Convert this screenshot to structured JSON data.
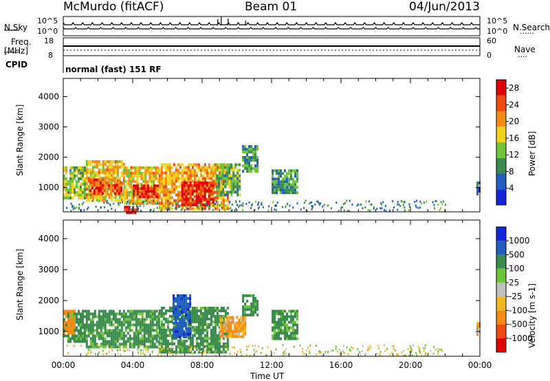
{
  "header": {
    "station": "McMurdo (fitACF)",
    "beam": "Beam 01",
    "date": "04/Jun/2013"
  },
  "top_panels": {
    "nsky_label": "N.Sky",
    "nsky_ticks": [
      "10^5",
      "10^0"
    ],
    "nsearch_label": "N.Search",
    "freq_label_1": "Freq.",
    "freq_label_2": "[MHz]",
    "freq_ticks": [
      "18",
      "8"
    ],
    "nave_label": "Nave",
    "nave_ticks": [
      "60",
      "0"
    ],
    "cpid_label": "CPID",
    "cpid_text": "normal (fast) 151 RF",
    "legend_dots": "......",
    "legend_dots_2": "...."
  },
  "colors": {
    "power_scale": [
      "#1426d9",
      "#1f5fbf",
      "#3a8c4e",
      "#6fc43a",
      "#f2d21e",
      "#f28c14",
      "#f04a10",
      "#e00000"
    ],
    "velocity_scale": [
      "#e00000",
      "#f04a10",
      "#f28c14",
      "#f2b81e",
      "#c0c0c0",
      "#6fc43a",
      "#3a8c4e",
      "#1f5fbf",
      "#1426d9"
    ]
  },
  "chart_data": [
    {
      "type": "heatmap",
      "title": "",
      "xlabel": "Time UT",
      "ylabel": "Slant Range [km]",
      "xlim": [
        "00:00",
        "24:00"
      ],
      "ylim": [
        200,
        4600
      ],
      "x_ticks": [
        "00:00",
        "04:00",
        "08:00",
        "12:00",
        "16:00",
        "20:00",
        "00:00"
      ],
      "y_ticks": [
        1000,
        2000,
        3000,
        4000
      ],
      "colorbar_label": "Power [dB]",
      "colorbar_ticks": [
        4,
        8,
        12,
        16,
        20,
        24,
        28
      ],
      "colorbar_range": [
        0,
        30
      ],
      "regions": [
        {
          "t0": 0.0,
          "t1": 1.3,
          "r0": 700,
          "r1": 1700,
          "value": 14
        },
        {
          "t0": 1.3,
          "t1": 3.5,
          "r0": 600,
          "r1": 1900,
          "value": 18
        },
        {
          "t0": 1.5,
          "t1": 3.3,
          "r0": 800,
          "r1": 1300,
          "value": 24
        },
        {
          "t0": 3.5,
          "t1": 5.5,
          "r0": 500,
          "r1": 1700,
          "value": 18
        },
        {
          "t0": 4.0,
          "t1": 5.5,
          "r0": 700,
          "r1": 1100,
          "value": 26
        },
        {
          "t0": 5.5,
          "t1": 9.5,
          "r0": 300,
          "r1": 1800,
          "value": 20
        },
        {
          "t0": 6.8,
          "t1": 8.6,
          "r0": 400,
          "r1": 1200,
          "value": 28
        },
        {
          "t0": 8.8,
          "t1": 10.2,
          "r0": 800,
          "r1": 1800,
          "value": 12
        },
        {
          "t0": 10.3,
          "t1": 11.2,
          "r0": 1500,
          "r1": 2400,
          "value": 10
        },
        {
          "t0": 12.0,
          "t1": 13.5,
          "r0": 800,
          "r1": 1600,
          "value": 10
        },
        {
          "t0": 3.5,
          "t1": 4.3,
          "r0": 200,
          "r1": 400,
          "value": 26
        },
        {
          "t0": 23.8,
          "t1": 24.0,
          "r0": 800,
          "r1": 1200,
          "value": 6
        }
      ]
    },
    {
      "type": "heatmap",
      "title": "",
      "xlabel": "Time UT",
      "ylabel": "Slant Range [km]",
      "xlim": [
        "00:00",
        "24:00"
      ],
      "ylim": [
        200,
        4600
      ],
      "x_ticks": [
        "00:00",
        "04:00",
        "08:00",
        "12:00",
        "16:00",
        "20:00",
        "00:00"
      ],
      "y_ticks": [
        1000,
        2000,
        3000,
        4000
      ],
      "colorbar_label": "Velocity [m s-1]",
      "colorbar_ticks": [
        "1000",
        "500",
        "100",
        "25",
        "-25",
        "-100",
        "-500",
        "-1000"
      ],
      "regions": [
        {
          "t0": 0.0,
          "t1": 1.3,
          "r0": 700,
          "r1": 1700,
          "value": 200
        },
        {
          "t0": 1.3,
          "t1": 5.5,
          "r0": 500,
          "r1": 1700,
          "value": 200
        },
        {
          "t0": 5.5,
          "t1": 9.5,
          "r0": 300,
          "r1": 1800,
          "value": 200
        },
        {
          "t0": 6.3,
          "t1": 7.3,
          "r0": 800,
          "r1": 2200,
          "value": 900
        },
        {
          "t0": 9.0,
          "t1": 10.5,
          "r0": 800,
          "r1": 1500,
          "value": -150
        },
        {
          "t0": 10.3,
          "t1": 11.2,
          "r0": 1500,
          "r1": 2200,
          "value": 200
        },
        {
          "t0": 12.0,
          "t1": 13.5,
          "r0": 800,
          "r1": 1700,
          "value": 200
        },
        {
          "t0": 0.0,
          "t1": 0.6,
          "r0": 900,
          "r1": 1700,
          "value": -300
        },
        {
          "t0": 23.8,
          "t1": 24.0,
          "r0": 900,
          "r1": 1300,
          "value": -150
        }
      ]
    }
  ]
}
